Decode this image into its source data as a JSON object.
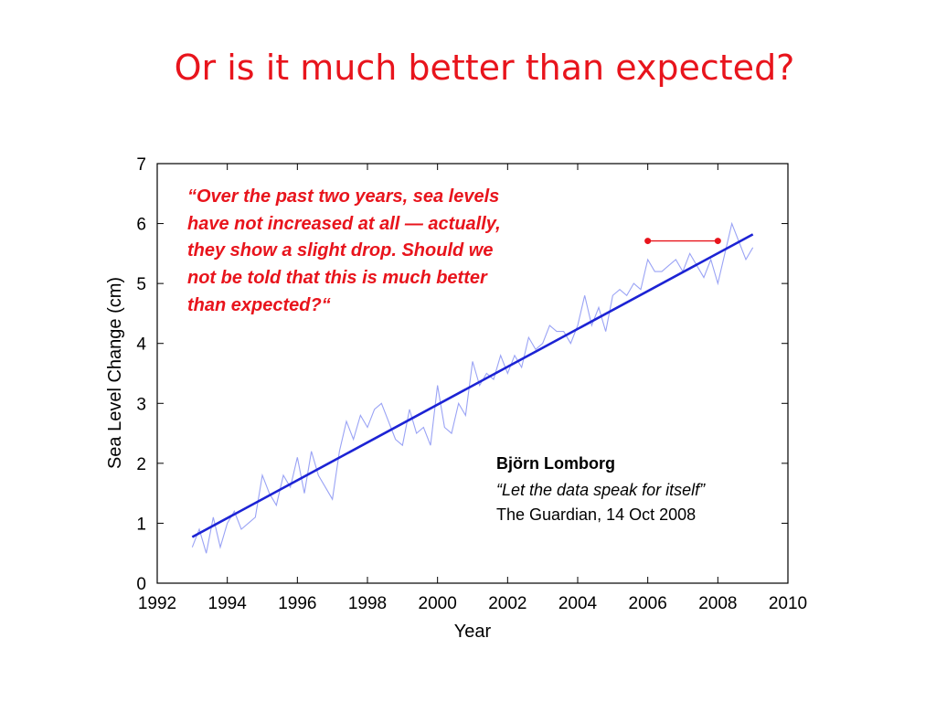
{
  "slide": {
    "title": "Or is it much better than expected?"
  },
  "chart_data": {
    "type": "line",
    "xlabel": "Year",
    "ylabel": "Sea Level Change (cm)",
    "xlim": [
      1992,
      2010
    ],
    "ylim": [
      0,
      7
    ],
    "x_ticks": [
      1992,
      1994,
      1996,
      1998,
      2000,
      2002,
      2004,
      2006,
      2008,
      2010
    ],
    "y_ticks": [
      0,
      1,
      2,
      3,
      4,
      5,
      6,
      7
    ],
    "grid": false,
    "series": [
      {
        "role": "observed",
        "color": "#9aa3f5",
        "x": [
          1993.0,
          1993.2,
          1993.4,
          1993.6,
          1993.8,
          1994.0,
          1994.2,
          1994.4,
          1994.6,
          1994.8,
          1995.0,
          1995.2,
          1995.4,
          1995.6,
          1995.8,
          1996.0,
          1996.2,
          1996.4,
          1996.6,
          1996.8,
          1997.0,
          1997.2,
          1997.4,
          1997.6,
          1997.8,
          1998.0,
          1998.2,
          1998.4,
          1998.6,
          1998.8,
          1999.0,
          1999.2,
          1999.4,
          1999.6,
          1999.8,
          2000.0,
          2000.2,
          2000.4,
          2000.6,
          2000.8,
          2001.0,
          2001.2,
          2001.4,
          2001.6,
          2001.8,
          2002.0,
          2002.2,
          2002.4,
          2002.6,
          2002.8,
          2003.0,
          2003.2,
          2003.4,
          2003.6,
          2003.8,
          2004.0,
          2004.2,
          2004.4,
          2004.6,
          2004.8,
          2005.0,
          2005.2,
          2005.4,
          2005.6,
          2005.8,
          2006.0,
          2006.2,
          2006.4,
          2006.6,
          2006.8,
          2007.0,
          2007.2,
          2007.4,
          2007.6,
          2007.8,
          2008.0,
          2008.2,
          2008.4,
          2008.6,
          2008.8,
          2009.0
        ],
        "y": [
          0.6,
          0.9,
          0.5,
          1.1,
          0.6,
          1.0,
          1.2,
          0.9,
          1.0,
          1.1,
          1.8,
          1.5,
          1.3,
          1.8,
          1.6,
          2.1,
          1.5,
          2.2,
          1.8,
          1.6,
          1.4,
          2.2,
          2.7,
          2.4,
          2.8,
          2.6,
          2.9,
          3.0,
          2.7,
          2.4,
          2.3,
          2.9,
          2.5,
          2.6,
          2.3,
          3.3,
          2.6,
          2.5,
          3.0,
          2.8,
          3.7,
          3.3,
          3.5,
          3.4,
          3.8,
          3.5,
          3.8,
          3.6,
          4.1,
          3.9,
          4.0,
          4.3,
          4.2,
          4.2,
          4.0,
          4.3,
          4.8,
          4.3,
          4.6,
          4.2,
          4.8,
          4.9,
          4.8,
          5.0,
          4.9,
          5.4,
          5.2,
          5.2,
          5.3,
          5.4,
          5.2,
          5.5,
          5.3,
          5.1,
          5.4,
          5.0,
          5.5,
          6.0,
          5.7,
          5.4,
          5.6
        ]
      },
      {
        "role": "trend",
        "color": "#1c23d4",
        "x": [
          1993.0,
          2009.0
        ],
        "y": [
          0.77,
          5.82
        ]
      },
      {
        "role": "highlight",
        "color": "#e8141c",
        "x": [
          2006.0,
          2008.0
        ],
        "y": [
          5.71,
          5.71
        ]
      }
    ],
    "annotations": {
      "quote": [
        "“Over the past two years, sea levels",
        "have not increased at all — actually,",
        "they show a slight drop. Should we",
        "not be told that this is much better",
        "than expected?“"
      ],
      "author": "Björn Lomborg",
      "article": "“Let the data speak for itself”",
      "source": "The Guardian, 14 Oct 2008"
    }
  }
}
